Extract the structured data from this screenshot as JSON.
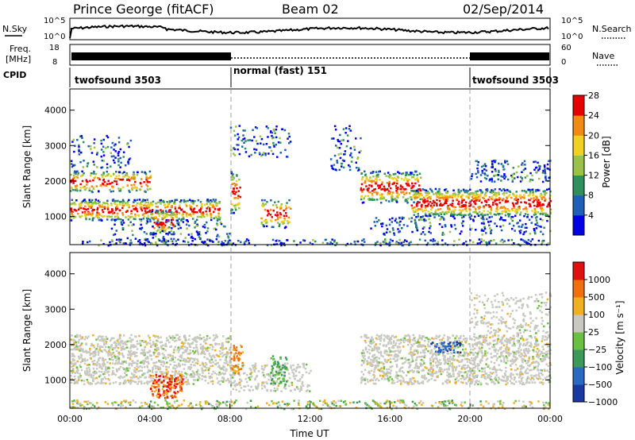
{
  "header": {
    "station": "Prince George (fitACF)",
    "beam": "Beam 02",
    "date": "02/Sep/2014"
  },
  "summary": {
    "nsky_label": "N.Sky",
    "nsky_ticks": [
      "10^5",
      "10^0"
    ],
    "nsearch_label": "N.Search",
    "freq_label": "Freq.",
    "freq_unit": "[MHz]",
    "freq_ticks": [
      "18",
      "8"
    ],
    "nave_label": "Nave",
    "nave_ticks": [
      "60",
      "0"
    ],
    "cpid_label": "CPID",
    "cpid_segments": [
      {
        "name": "twofsound 3503",
        "start": 0,
        "end": 8
      },
      {
        "name": "normal (fast) 151",
        "start": 8,
        "end": 20
      },
      {
        "name": "twofsound 3503",
        "start": 20,
        "end": 24
      }
    ]
  },
  "chart_data": [
    {
      "type": "heatmap",
      "name": "power",
      "xlabel": "",
      "ylabel": "Slant Range [km]",
      "ylim": [
        200,
        4600
      ],
      "xlim": [
        0,
        24
      ],
      "yticks": [
        "1000",
        "2000",
        "3000",
        "4000"
      ],
      "colorbar_label": "Power [dB]",
      "colorbar_ticks": [
        "4",
        "8",
        "12",
        "16",
        "20",
        "24",
        "28"
      ],
      "colorbar_colors": [
        "#0000e6",
        "#1f5fb5",
        "#2f8f5f",
        "#9ac24a",
        "#f0d020",
        "#f08a10",
        "#e60000"
      ]
    },
    {
      "type": "heatmap",
      "name": "velocity",
      "xlabel": "Time UT",
      "ylabel": "Slant Range [km]",
      "ylim": [
        200,
        4600
      ],
      "xlim": [
        0,
        24
      ],
      "yticks": [
        "1000",
        "2000",
        "3000",
        "4000"
      ],
      "xticks": [
        "00:00",
        "04:00",
        "08:00",
        "12:00",
        "16:00",
        "20:00",
        "00:00"
      ],
      "colorbar_label": "Velocity [m s⁻¹]",
      "colorbar_ticks": [
        "1000",
        "500",
        "100",
        "25",
        "−25",
        "−100",
        "−500",
        "−1000"
      ],
      "colorbar_colors": [
        "#1a3aa0",
        "#2a6ac0",
        "#3a9a5a",
        "#6ac040",
        "#c8c8c0",
        "#f0b020",
        "#f07010",
        "#e01010"
      ]
    }
  ]
}
